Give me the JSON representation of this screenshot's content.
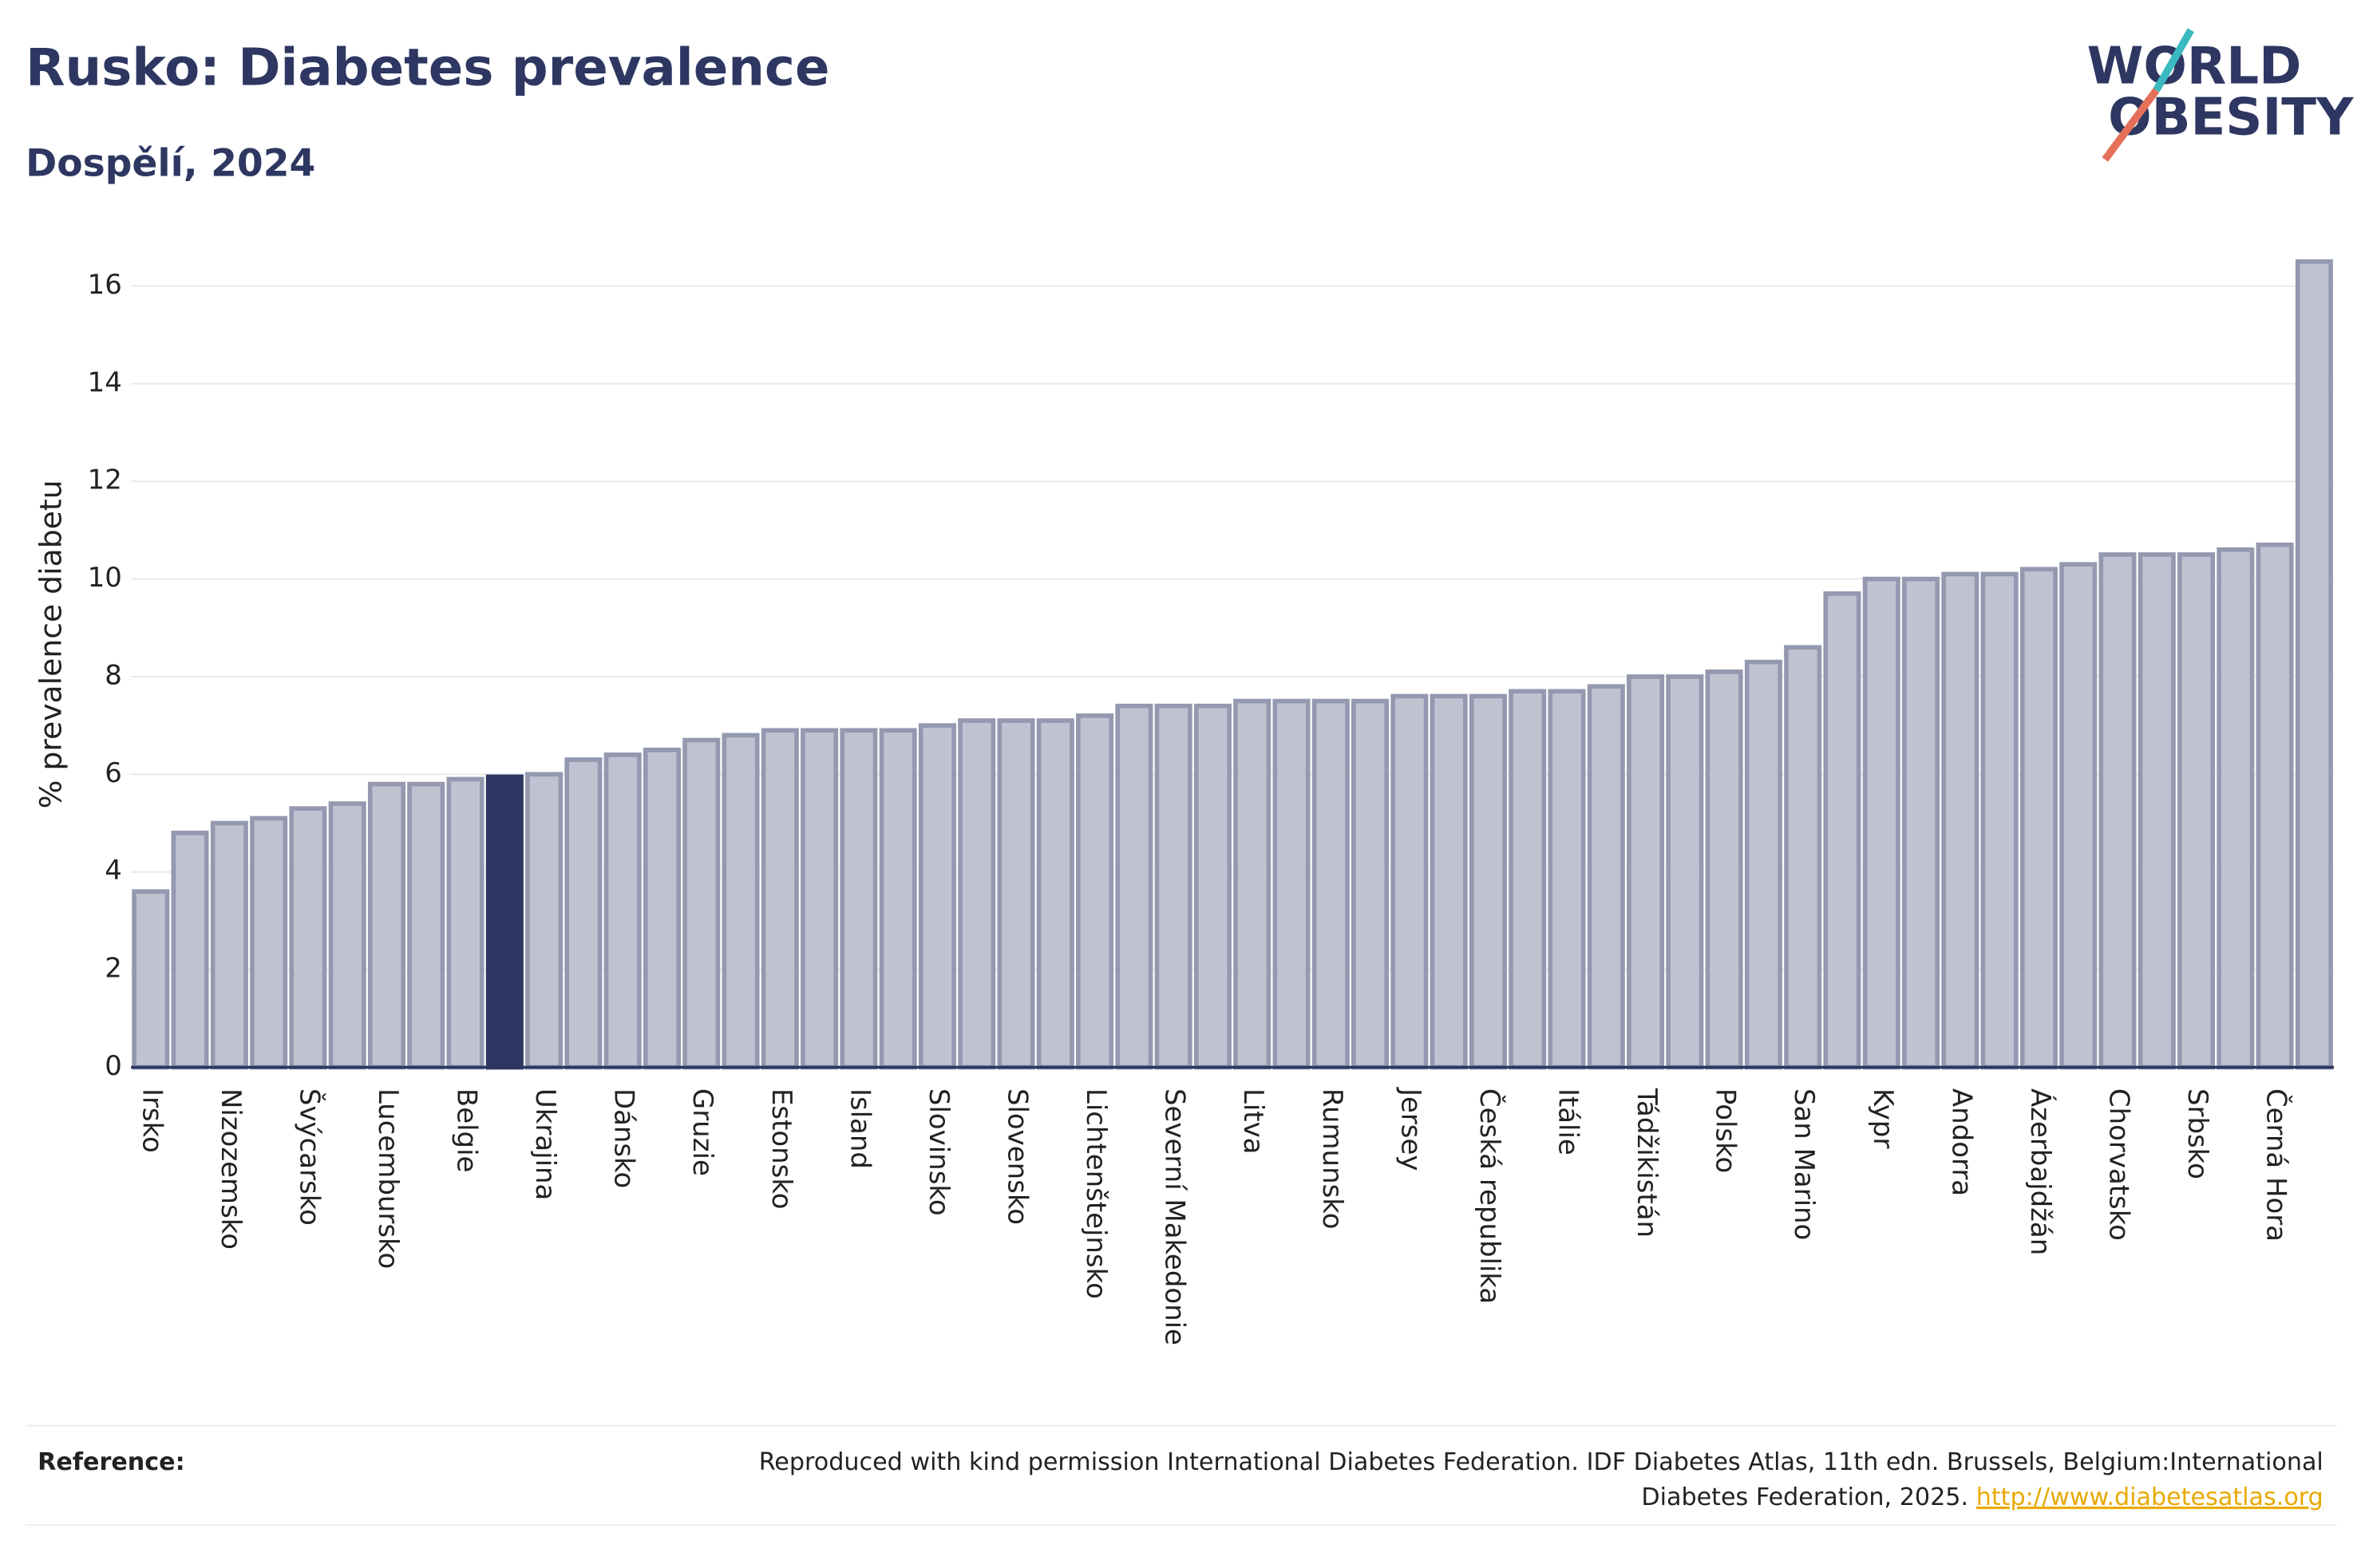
{
  "chart_data": {
    "type": "bar",
    "title": "Rusko: Diabetes prevalence",
    "subtitle": "Dospělí, 2024",
    "y_label": "% prevalence diabetu",
    "categories": [
      "Irsko",
      null,
      "Nizozemsko",
      null,
      "Švýcarsko",
      null,
      "Lucembursko",
      null,
      "Belgie",
      null,
      "Ukrajina",
      null,
      "Dánsko",
      null,
      "Gruzie",
      null,
      "Estonsko",
      null,
      "Island",
      null,
      "Slovinsko",
      null,
      "Slovensko",
      null,
      "Lichtenštejnsko",
      null,
      "Severní Makedonie",
      null,
      "Litva",
      null,
      "Rumunsko",
      null,
      "Jersey",
      null,
      "Česká republika",
      null,
      "Itálie",
      null,
      "Tádžikistán",
      null,
      "Polsko",
      null,
      "San Marino",
      null,
      "Kypr",
      null,
      "Andorra",
      null,
      "Ázerbajdžán",
      null,
      "Chorvatsko",
      null,
      "Srbsko",
      null,
      "Černá Hora",
      null
    ],
    "values": [
      3.6,
      4.8,
      5.0,
      5.1,
      5.3,
      5.4,
      5.8,
      5.8,
      5.9,
      5.95,
      6.0,
      6.3,
      6.4,
      6.5,
      6.7,
      6.8,
      6.9,
      6.9,
      6.9,
      6.9,
      7.0,
      7.1,
      7.1,
      7.1,
      7.2,
      7.4,
      7.4,
      7.4,
      7.5,
      7.5,
      7.5,
      7.5,
      7.6,
      7.6,
      7.6,
      7.7,
      7.7,
      7.8,
      8.0,
      8.0,
      8.1,
      8.3,
      8.6,
      9.7,
      10.0,
      10.0,
      10.1,
      10.1,
      10.2,
      10.3,
      10.5,
      10.5,
      10.5,
      10.6,
      10.7,
      16.5
    ],
    "color": "#bfc3d1",
    "edge_color": "#9499b0",
    "highlight_color": "#2d3761",
    "highlight_index": 9,
    "ylim": [
      0,
      16.6
    ],
    "yticks": [
      0,
      2,
      4,
      6,
      8,
      10,
      12,
      14,
      16
    ],
    "grid": true
  },
  "logo": {
    "lines": [
      "WORLD",
      "OBESITY"
    ]
  },
  "reference": {
    "label": "Reference:",
    "text_lines": [
      "Reproduced with kind permission International Diabetes Federation. IDF Diabetes Atlas, 11th edn. Brussels, Belgium:International",
      "Diabetes Federation, 2025."
    ],
    "link": "http://www.diabetesatlas.org"
  }
}
